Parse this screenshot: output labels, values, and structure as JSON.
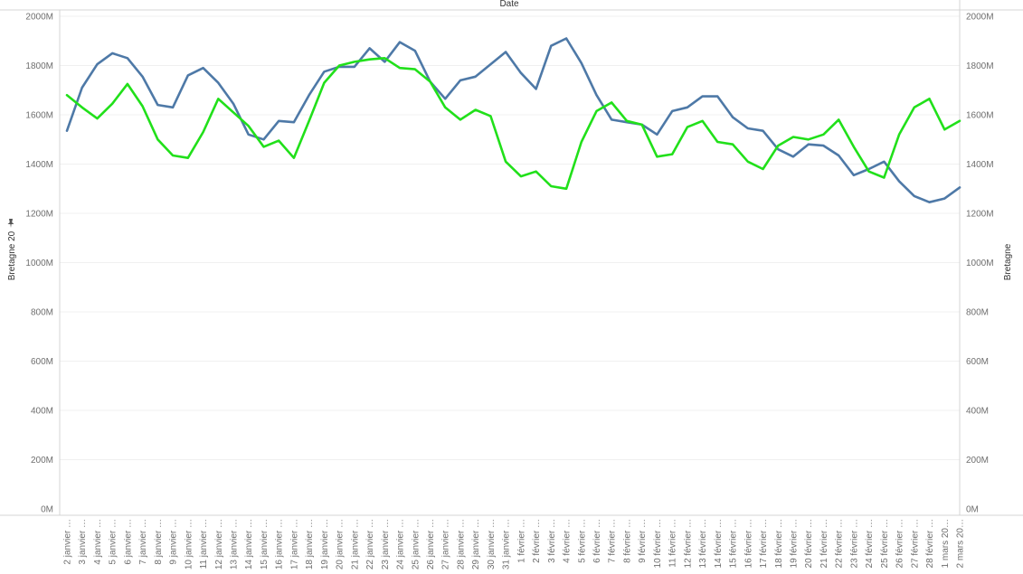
{
  "header": {
    "title": "Date"
  },
  "axes": {
    "left_title": "Bretagne 20",
    "left_title_icon": "pin-icon",
    "right_title": "Bretagne"
  },
  "colors": {
    "series_blue": "#4e79a7",
    "series_green": "#21e01a",
    "gridline": "#f0f0f0",
    "axis_line": "#d4d4d4"
  },
  "chart_data": {
    "type": "line",
    "x": [
      "2 janvier …",
      "3 janvier …",
      "4 janvier …",
      "5 janvier …",
      "6 janvier …",
      "7 janvier …",
      "8 janvier …",
      "9 janvier …",
      "10 janvier …",
      "11 janvier …",
      "12 janvier …",
      "13 janvier …",
      "14 janvier …",
      "15 janvier …",
      "16 janvier …",
      "17 janvier …",
      "18 janvier …",
      "19 janvier …",
      "20 janvier …",
      "21 janvier …",
      "22 janvier …",
      "23 janvier …",
      "24 janvier …",
      "25 janvier …",
      "26 janvier …",
      "27 janvier …",
      "28 janvier …",
      "29 janvier …",
      "30 janvier …",
      "31 janvier …",
      "1 février …",
      "2 février …",
      "3 février …",
      "4 février …",
      "5 février …",
      "6 février …",
      "7 février …",
      "8 février …",
      "9 février …",
      "10 février …",
      "11 février …",
      "12 février …",
      "13 février …",
      "14 février …",
      "15 février …",
      "16 février …",
      "17 février …",
      "18 février …",
      "19 février …",
      "20 février …",
      "21 février …",
      "22 février …",
      "23 février …",
      "24 février …",
      "25 février …",
      "26 février …",
      "27 février …",
      "28 février …",
      "1 mars 20…",
      "2 mars 20…"
    ],
    "series": [
      {
        "color": "#4e79a7",
        "axis": "left",
        "values": [
          1535,
          1710,
          1805,
          1850,
          1830,
          1755,
          1640,
          1630,
          1760,
          1790,
          1730,
          1645,
          1520,
          1500,
          1575,
          1570,
          1680,
          1775,
          1795,
          1795,
          1870,
          1815,
          1895,
          1860,
          1735,
          1665,
          1740,
          1755,
          1805,
          1855,
          1770,
          1705,
          1880,
          1910,
          1810,
          1680,
          1580,
          1570,
          1560,
          1520,
          1615,
          1630,
          1675,
          1675,
          1590,
          1545,
          1535,
          1460,
          1430,
          1480,
          1475,
          1435,
          1355,
          1380,
          1410,
          1330,
          1270,
          1245,
          1260,
          1305
        ]
      },
      {
        "color": "#21e01a",
        "axis": "right",
        "values": [
          1680,
          1630,
          1585,
          1645,
          1725,
          1635,
          1500,
          1435,
          1425,
          1530,
          1665,
          1610,
          1555,
          1470,
          1495,
          1425,
          1575,
          1730,
          1800,
          1815,
          1825,
          1830,
          1790,
          1785,
          1735,
          1630,
          1580,
          1620,
          1595,
          1410,
          1350,
          1370,
          1310,
          1300,
          1490,
          1615,
          1650,
          1575,
          1560,
          1430,
          1440,
          1550,
          1575,
          1490,
          1480,
          1410,
          1380,
          1475,
          1510,
          1500,
          1520,
          1580,
          1470,
          1370,
          1345,
          1520,
          1630,
          1665,
          1540,
          1575
        ]
      }
    ],
    "y_left": {
      "ticks": [
        "0M",
        "200M",
        "400M",
        "600M",
        "800M",
        "1000M",
        "1200M",
        "1400M",
        "1600M",
        "1800M",
        "2000M"
      ],
      "ylim": [
        0,
        2000
      ]
    },
    "y_right": {
      "ticks": [
        "0M",
        "200M",
        "400M",
        "600M",
        "800M",
        "1000M",
        "1200M",
        "1400M",
        "1600M",
        "1800M",
        "2000M"
      ],
      "ylim": [
        0,
        2000
      ]
    },
    "grid": true,
    "legend": "none"
  }
}
